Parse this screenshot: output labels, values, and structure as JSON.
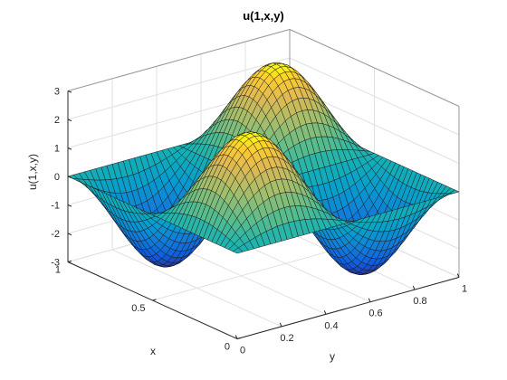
{
  "chart_data": {
    "type": "surface",
    "title": "u(1,x,y)",
    "xlabel": "x",
    "ylabel": "y",
    "zlabel": "u(1,x,y)",
    "xlim": [
      0,
      1
    ],
    "ylim": [
      0,
      1
    ],
    "zlim": [
      -3,
      3
    ],
    "x_ticks": [
      "0",
      "0.5",
      "1"
    ],
    "y_ticks": [
      "0",
      "0.2",
      "0.4",
      "0.6",
      "0.8",
      "1"
    ],
    "z_ticks": [
      "-3",
      "-2",
      "-1",
      "0",
      "1",
      "2",
      "3"
    ],
    "grid": true,
    "colormap": "parula",
    "function": "u(1,x,y) = 3 · sin(2πx) · sin(2πy)",
    "amplitude": 3,
    "grid_resolution": 40,
    "surface_samples": {
      "x": [
        0,
        0.25,
        0.5,
        0.75,
        1
      ],
      "y": [
        0,
        0.25,
        0.5,
        0.75,
        1
      ],
      "z": [
        [
          0,
          0,
          0,
          0,
          0
        ],
        [
          0,
          3,
          0,
          -3,
          0
        ],
        [
          0,
          0,
          0,
          0,
          0
        ],
        [
          0,
          -3,
          0,
          3,
          0
        ],
        [
          0,
          0,
          0,
          0,
          0
        ]
      ]
    }
  }
}
